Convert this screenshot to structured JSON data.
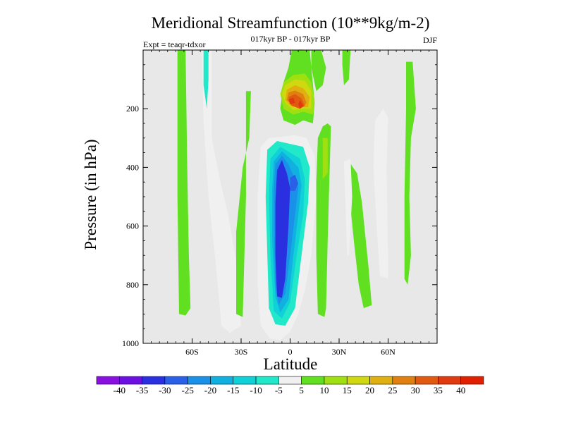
{
  "chart_data": {
    "type": "heatmap",
    "title": "Meridional Streamfunction (10**9kg/m-2)",
    "subtitle": "017kyr BP - 017kyr BP",
    "left_label": "Expt = teaqr-tdxor",
    "right_label": "DJF",
    "xlabel": "Latitude",
    "ylabel": "Pressure (in hPa)",
    "xlim": [
      -90,
      90
    ],
    "ylim": [
      0,
      1000
    ],
    "y_inverted": true,
    "x_ticks": [
      {
        "value": -60,
        "label": "60S"
      },
      {
        "value": -30,
        "label": "30S"
      },
      {
        "value": 0,
        "label": "0"
      },
      {
        "value": 30,
        "label": "30N"
      },
      {
        "value": 60,
        "label": "60N"
      }
    ],
    "y_ticks": [
      {
        "value": 200,
        "label": "200"
      },
      {
        "value": 400,
        "label": "400"
      },
      {
        "value": 600,
        "label": "600"
      },
      {
        "value": 800,
        "label": "800"
      },
      {
        "value": 1000,
        "label": "1000"
      }
    ],
    "background_color": "#e8e8e8",
    "colorbar": {
      "levels": [
        "-40",
        "-35",
        "-30",
        "-25",
        "-20",
        "-15",
        "-10",
        "-5",
        "5",
        "10",
        "15",
        "20",
        "25",
        "30",
        "35",
        "40"
      ],
      "colors": [
        "#8a10e0",
        "#6b10e0",
        "#2a30e0",
        "#2a60e8",
        "#1a90e8",
        "#10b0e0",
        "#10d0d8",
        "#20e8c8",
        "#f0f0f0",
        "#60e020",
        "#a0e010",
        "#d0d810",
        "#e0b010",
        "#e08010",
        "#e05a10",
        "#e03a10",
        "#e02000"
      ]
    },
    "regions": [
      {
        "name": "band-60s",
        "value": 5,
        "points": [
          [
            -69,
            0
          ],
          [
            -64,
            0
          ],
          [
            -63,
            400
          ],
          [
            -62,
            700
          ],
          [
            -61,
            880
          ],
          [
            -64,
            905
          ],
          [
            -68,
            900
          ],
          [
            -69,
            500
          ]
        ]
      },
      {
        "name": "band-50s",
        "value": -5,
        "points": [
          [
            -54,
            0
          ],
          [
            -48,
            0
          ],
          [
            -48,
            300
          ],
          [
            -43,
            440
          ],
          [
            -38,
            560
          ],
          [
            -33,
            720
          ],
          [
            -30,
            940
          ],
          [
            -37,
            965
          ],
          [
            -42,
            940
          ],
          [
            -46,
            700
          ],
          [
            -50,
            500
          ],
          [
            -53,
            240
          ]
        ]
      },
      {
        "name": "band-50s-core",
        "value": -10,
        "points": [
          [
            -53,
            0
          ],
          [
            -50,
            0
          ],
          [
            -50,
            100
          ],
          [
            -51,
            200
          ],
          [
            -53,
            120
          ]
        ]
      },
      {
        "name": "band-25s",
        "value": 5,
        "points": [
          [
            -27,
            140
          ],
          [
            -24,
            140
          ],
          [
            -25,
            300
          ],
          [
            -29,
            400
          ],
          [
            -33,
            620
          ],
          [
            -33,
            900
          ],
          [
            -29,
            910
          ],
          [
            -27,
            500
          ]
        ]
      },
      {
        "name": "dipole-outer",
        "value": -5,
        "points": [
          [
            -18,
            330
          ],
          [
            -13,
            300
          ],
          [
            -4,
            295
          ],
          [
            3,
            290
          ],
          [
            10,
            300
          ],
          [
            15,
            360
          ],
          [
            16,
            500
          ],
          [
            13,
            700
          ],
          [
            9,
            820
          ],
          [
            5,
            900
          ],
          [
            0,
            960
          ],
          [
            -6,
            990
          ],
          [
            -12,
            985
          ],
          [
            -18,
            940
          ],
          [
            -20,
            800
          ],
          [
            -20,
            500
          ]
        ]
      },
      {
        "name": "dipole-l1",
        "value": -10,
        "points": [
          [
            -14,
            340
          ],
          [
            -8,
            310
          ],
          [
            0,
            320
          ],
          [
            8,
            330
          ],
          [
            12,
            400
          ],
          [
            11,
            520
          ],
          [
            7,
            700
          ],
          [
            3,
            880
          ],
          [
            -3,
            940
          ],
          [
            -9,
            935
          ],
          [
            -13,
            880
          ],
          [
            -15,
            500
          ]
        ]
      },
      {
        "name": "dipole-l2",
        "value": -15,
        "points": [
          [
            -12,
            370
          ],
          [
            -6,
            330
          ],
          [
            0,
            350
          ],
          [
            6,
            370
          ],
          [
            9,
            440
          ],
          [
            8,
            560
          ],
          [
            4,
            700
          ],
          [
            0,
            860
          ],
          [
            -5,
            915
          ],
          [
            -10,
            890
          ],
          [
            -12,
            700
          ],
          [
            -13,
            500
          ]
        ]
      },
      {
        "name": "dipole-l3",
        "value": -20,
        "points": [
          [
            -10,
            380
          ],
          [
            -5,
            345
          ],
          [
            0,
            370
          ],
          [
            5,
            400
          ],
          [
            7,
            460
          ],
          [
            5,
            560
          ],
          [
            2,
            700
          ],
          [
            -1,
            850
          ],
          [
            -6,
            895
          ],
          [
            -9,
            840
          ],
          [
            -11,
            650
          ],
          [
            -11,
            480
          ]
        ]
      },
      {
        "name": "dipole-l4",
        "value": -25,
        "points": [
          [
            -9,
            390
          ],
          [
            -5,
            360
          ],
          [
            -1,
            390
          ],
          [
            3,
            440
          ],
          [
            5,
            470
          ],
          [
            3,
            560
          ],
          [
            0,
            700
          ],
          [
            -3,
            830
          ],
          [
            -7,
            870
          ],
          [
            -9,
            800
          ],
          [
            -10,
            600
          ],
          [
            -10,
            480
          ]
        ]
      },
      {
        "name": "dipole-core",
        "value": -35,
        "points": [
          [
            -8,
            410
          ],
          [
            -5,
            375
          ],
          [
            -2,
            420
          ],
          [
            0,
            470
          ],
          [
            -1,
            600
          ],
          [
            -3,
            780
          ],
          [
            -5,
            845
          ],
          [
            -8,
            840
          ],
          [
            -9,
            700
          ],
          [
            -9,
            520
          ]
        ]
      },
      {
        "name": "dipole-nh-node",
        "value": -30,
        "points": [
          [
            0,
            435
          ],
          [
            3,
            425
          ],
          [
            5,
            455
          ],
          [
            3,
            480
          ],
          [
            0,
            480
          ]
        ]
      },
      {
        "name": "cell-outer",
        "value": 5,
        "points": [
          [
            1,
            0
          ],
          [
            4,
            0
          ],
          [
            6,
            -2
          ],
          [
            12,
            0
          ],
          [
            13,
            60
          ],
          [
            15,
            180
          ],
          [
            14,
            250
          ],
          [
            8,
            240
          ],
          [
            3,
            255
          ],
          [
            -4,
            240
          ],
          [
            -6,
            200
          ],
          [
            -4,
            110
          ],
          [
            -1,
            60
          ]
        ]
      },
      {
        "name": "cell-l1",
        "value": 10,
        "points": [
          [
            -4,
            110
          ],
          [
            2,
            85
          ],
          [
            9,
            80
          ],
          [
            13,
            110
          ],
          [
            15,
            170
          ],
          [
            14,
            220
          ],
          [
            8,
            210
          ],
          [
            2,
            220
          ],
          [
            -4,
            200
          ],
          [
            -6,
            150
          ]
        ]
      },
      {
        "name": "cell-l2",
        "value": 15,
        "points": [
          [
            -3,
            120
          ],
          [
            3,
            100
          ],
          [
            9,
            105
          ],
          [
            13,
            140
          ],
          [
            13,
            200
          ],
          [
            7,
            200
          ],
          [
            2,
            205
          ],
          [
            -3,
            180
          ],
          [
            -5,
            150
          ]
        ]
      },
      {
        "name": "cell-l3",
        "value": 20,
        "points": [
          [
            -2,
            135
          ],
          [
            3,
            120
          ],
          [
            8,
            130
          ],
          [
            12,
            160
          ],
          [
            11,
            195
          ],
          [
            6,
            195
          ],
          [
            0,
            190
          ],
          [
            -3,
            170
          ]
        ]
      },
      {
        "name": "cell-l4",
        "value": 25,
        "points": [
          [
            -1,
            145
          ],
          [
            3,
            138
          ],
          [
            8,
            150
          ],
          [
            10,
            180
          ],
          [
            8,
            195
          ],
          [
            2,
            190
          ],
          [
            -2,
            170
          ]
        ]
      },
      {
        "name": "cell-l5",
        "value": 30,
        "points": [
          [
            -1,
            160
          ],
          [
            3,
            150
          ],
          [
            7,
            165
          ],
          [
            9,
            190
          ],
          [
            6,
            200
          ],
          [
            1,
            190
          ]
        ]
      },
      {
        "name": "cell-core-left",
        "value": 35,
        "points": [
          [
            -1,
            168
          ],
          [
            2,
            162
          ],
          [
            3,
            180
          ],
          [
            0,
            185
          ]
        ]
      },
      {
        "name": "cell-core-right",
        "value": 35,
        "points": [
          [
            6,
            170
          ],
          [
            8,
            190
          ],
          [
            6,
            200
          ],
          [
            5,
            185
          ]
        ]
      },
      {
        "name": "band-15n",
        "value": 5,
        "points": [
          [
            13,
            0
          ],
          [
            19,
            0
          ],
          [
            22,
            60
          ],
          [
            20,
            120
          ],
          [
            16,
            140
          ],
          [
            13,
            60
          ]
        ]
      },
      {
        "name": "band-22n",
        "value": 5,
        "points": [
          [
            20,
            260
          ],
          [
            23,
            250
          ],
          [
            25,
            260
          ],
          [
            24,
            450
          ],
          [
            23,
            650
          ],
          [
            22,
            880
          ],
          [
            21,
            910
          ],
          [
            17,
            900
          ],
          [
            16,
            700
          ],
          [
            16,
            450
          ],
          [
            17,
            300
          ]
        ]
      },
      {
        "name": "band-22n-core",
        "value": 10,
        "points": [
          [
            20,
            300
          ],
          [
            23,
            300
          ],
          [
            23,
            420
          ],
          [
            20,
            440
          ]
        ]
      },
      {
        "name": "band-35n",
        "value": 5,
        "points": [
          [
            32,
            0
          ],
          [
            37,
            0
          ],
          [
            36,
            100
          ],
          [
            33,
            120
          ],
          [
            32,
            50
          ]
        ]
      },
      {
        "name": "band-40n",
        "value": 5,
        "points": [
          [
            36,
            380
          ],
          [
            41,
            420
          ],
          [
            44,
            520
          ],
          [
            48,
            740
          ],
          [
            50,
            870
          ],
          [
            45,
            880
          ],
          [
            42,
            800
          ],
          [
            39,
            650
          ],
          [
            36,
            480
          ]
        ]
      },
      {
        "name": "band-40n-inner",
        "value": -5,
        "points": [
          [
            33,
            380
          ],
          [
            37,
            370
          ],
          [
            38,
            500
          ],
          [
            36,
            700
          ],
          [
            35,
            700
          ],
          [
            34,
            550
          ]
        ]
      },
      {
        "name": "band-55n",
        "value": -5,
        "points": [
          [
            52,
            240
          ],
          [
            57,
            200
          ],
          [
            60,
            230
          ],
          [
            59,
            400
          ],
          [
            60,
            700
          ],
          [
            60,
            780
          ],
          [
            55,
            770
          ],
          [
            53,
            600
          ],
          [
            51,
            400
          ]
        ]
      },
      {
        "name": "band-72n",
        "value": 5,
        "points": [
          [
            71,
            40
          ],
          [
            75,
            40
          ],
          [
            77,
            200
          ],
          [
            74,
            300
          ],
          [
            73,
            500
          ],
          [
            74,
            700
          ],
          [
            72,
            800
          ],
          [
            70,
            780
          ],
          [
            70,
            500
          ],
          [
            71,
            200
          ]
        ]
      }
    ]
  }
}
